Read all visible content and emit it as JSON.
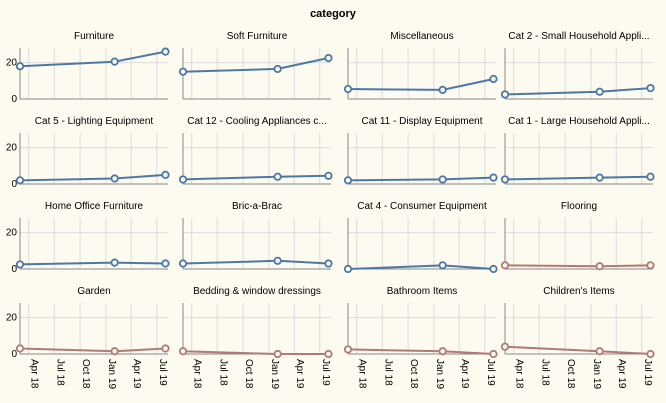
{
  "chart_data": {
    "type": "line",
    "title": "category",
    "facet_field": "category",
    "columns": 4,
    "x_ticks": [
      "Apr 18",
      "Jul 18",
      "Oct 18",
      "Jan 19",
      "Apr 19",
      "Jul 19"
    ],
    "x_tick_dates": [
      "2018-04-01",
      "2018-07-01",
      "2018-10-01",
      "2019-01-01",
      "2019-04-01",
      "2019-07-01"
    ],
    "x_range": [
      "2018-03-01",
      "2019-08-10"
    ],
    "y_ticks": [
      0,
      20
    ],
    "ylim": [
      0,
      28
    ],
    "grid": true,
    "colors": {
      "up": "#4c78a8",
      "down": "#b07a76",
      "background": "#fdfaef"
    },
    "panels": [
      {
        "name": "Furniture",
        "color": "up",
        "points": [
          {
            "x": "2018-03-01",
            "y": 18
          },
          {
            "x": "2019-02-01",
            "y": 20.5
          },
          {
            "x": "2019-08-01",
            "y": 26
          }
        ]
      },
      {
        "name": "Soft Furniture",
        "color": "up",
        "points": [
          {
            "x": "2018-03-01",
            "y": 15
          },
          {
            "x": "2019-02-01",
            "y": 16.5
          },
          {
            "x": "2019-08-01",
            "y": 22.5
          }
        ]
      },
      {
        "name": "Miscellaneous",
        "color": "up",
        "points": [
          {
            "x": "2018-03-01",
            "y": 5.5
          },
          {
            "x": "2019-02-01",
            "y": 5
          },
          {
            "x": "2019-08-01",
            "y": 11
          }
        ]
      },
      {
        "name": "Cat 2 - Small Household Appli...",
        "color": "up",
        "points": [
          {
            "x": "2018-03-01",
            "y": 2.5
          },
          {
            "x": "2019-02-01",
            "y": 4
          },
          {
            "x": "2019-08-01",
            "y": 6
          }
        ]
      },
      {
        "name": "Cat 5 - Lighting Equipment",
        "color": "up",
        "points": [
          {
            "x": "2018-03-01",
            "y": 2
          },
          {
            "x": "2019-02-01",
            "y": 3
          },
          {
            "x": "2019-08-01",
            "y": 5
          }
        ]
      },
      {
        "name": "Cat 12 - Cooling Appliances c...",
        "color": "up",
        "points": [
          {
            "x": "2018-03-01",
            "y": 2.5
          },
          {
            "x": "2019-02-01",
            "y": 4
          },
          {
            "x": "2019-08-01",
            "y": 4.5
          }
        ]
      },
      {
        "name": "Cat 11 - Display Equipment",
        "color": "up",
        "points": [
          {
            "x": "2018-03-01",
            "y": 2
          },
          {
            "x": "2019-02-01",
            "y": 2.5
          },
          {
            "x": "2019-08-01",
            "y": 3.5
          }
        ]
      },
      {
        "name": "Cat 1 - Large Household Appli...",
        "color": "up",
        "points": [
          {
            "x": "2018-03-01",
            "y": 2.5
          },
          {
            "x": "2019-02-01",
            "y": 3.5
          },
          {
            "x": "2019-08-01",
            "y": 4
          }
        ]
      },
      {
        "name": "Home Office Furniture",
        "color": "up",
        "points": [
          {
            "x": "2018-03-01",
            "y": 2.5
          },
          {
            "x": "2019-02-01",
            "y": 3.5
          },
          {
            "x": "2019-08-01",
            "y": 3
          }
        ]
      },
      {
        "name": "Bric-a-Brac",
        "color": "up",
        "points": [
          {
            "x": "2018-03-01",
            "y": 3
          },
          {
            "x": "2019-02-01",
            "y": 4.5
          },
          {
            "x": "2019-08-01",
            "y": 3
          }
        ]
      },
      {
        "name": "Cat 4 - Consumer Equipment",
        "color": "up",
        "points": [
          {
            "x": "2018-03-01",
            "y": 0
          },
          {
            "x": "2019-02-01",
            "y": 2
          },
          {
            "x": "2019-08-01",
            "y": 0
          }
        ]
      },
      {
        "name": "Flooring",
        "color": "down",
        "points": [
          {
            "x": "2018-03-01",
            "y": 2
          },
          {
            "x": "2019-02-01",
            "y": 1.5
          },
          {
            "x": "2019-08-01",
            "y": 2
          }
        ]
      },
      {
        "name": "Garden",
        "color": "down",
        "points": [
          {
            "x": "2018-03-01",
            "y": 3
          },
          {
            "x": "2019-02-01",
            "y": 1.5
          },
          {
            "x": "2019-08-01",
            "y": 3
          }
        ]
      },
      {
        "name": "Bedding & window dressings",
        "color": "down",
        "points": [
          {
            "x": "2018-03-01",
            "y": 1.5
          },
          {
            "x": "2019-02-01",
            "y": 0
          },
          {
            "x": "2019-08-01",
            "y": 0
          }
        ]
      },
      {
        "name": "Bathroom Items",
        "color": "down",
        "points": [
          {
            "x": "2018-03-01",
            "y": 2.5
          },
          {
            "x": "2019-02-01",
            "y": 1.5
          },
          {
            "x": "2019-08-01",
            "y": 0
          }
        ]
      },
      {
        "name": "Children's Items",
        "color": "down",
        "points": [
          {
            "x": "2018-03-01",
            "y": 4
          },
          {
            "x": "2019-02-01",
            "y": 1.5
          },
          {
            "x": "2019-08-01",
            "y": 0
          }
        ]
      }
    ]
  }
}
